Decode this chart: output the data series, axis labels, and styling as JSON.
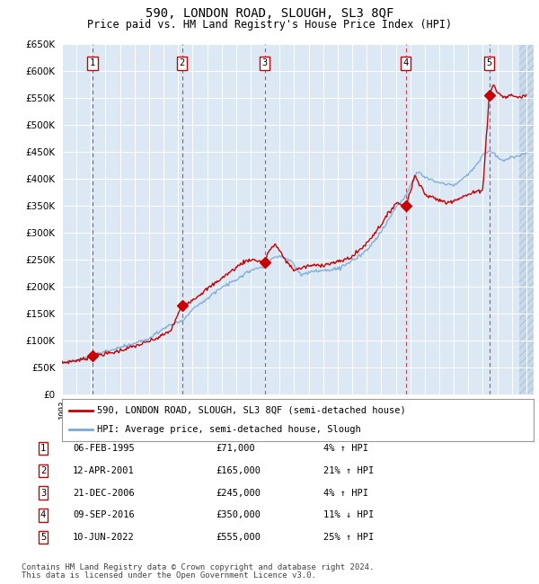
{
  "title": "590, LONDON ROAD, SLOUGH, SL3 8QF",
  "subtitle": "Price paid vs. HM Land Registry's House Price Index (HPI)",
  "ylim": [
    0,
    650000
  ],
  "yticks": [
    0,
    50000,
    100000,
    150000,
    200000,
    250000,
    300000,
    350000,
    400000,
    450000,
    500000,
    550000,
    600000,
    650000
  ],
  "xlim_start": 1993.0,
  "xlim_end": 2025.5,
  "bg_color": "#dce9f5",
  "hatch_color": "#c8d8ea",
  "grid_color": "#ffffff",
  "sale_color": "#cc0000",
  "hpi_color": "#7aaad4",
  "transactions": [
    {
      "num": 1,
      "date": "06-FEB-1995",
      "year": 1995.1,
      "price": 71000,
      "pct": "4%",
      "dir": "↑"
    },
    {
      "num": 2,
      "date": "12-APR-2001",
      "year": 2001.28,
      "price": 165000,
      "pct": "21%",
      "dir": "↑"
    },
    {
      "num": 3,
      "date": "21-DEC-2006",
      "year": 2006.97,
      "price": 245000,
      "pct": "4%",
      "dir": "↑"
    },
    {
      "num": 4,
      "date": "09-SEP-2016",
      "year": 2016.69,
      "price": 350000,
      "pct": "11%",
      "dir": "↓"
    },
    {
      "num": 5,
      "date": "10-JUN-2022",
      "year": 2022.44,
      "price": 555000,
      "pct": "25%",
      "dir": "↑"
    }
  ],
  "legend_line1": "590, LONDON ROAD, SLOUGH, SL3 8QF (semi-detached house)",
  "legend_line2": "HPI: Average price, semi-detached house, Slough",
  "footer1": "Contains HM Land Registry data © Crown copyright and database right 2024.",
  "footer2": "This data is licensed under the Open Government Licence v3.0.",
  "table_rows": [
    [
      "1",
      "06-FEB-1995",
      "£71,000",
      "4% ↑ HPI"
    ],
    [
      "2",
      "12-APR-2001",
      "£165,000",
      "21% ↑ HPI"
    ],
    [
      "3",
      "21-DEC-2006",
      "£245,000",
      "4% ↑ HPI"
    ],
    [
      "4",
      "09-SEP-2016",
      "£350,000",
      "11% ↓ HPI"
    ],
    [
      "5",
      "10-JUN-2022",
      "£555,000",
      "25% ↑ HPI"
    ]
  ]
}
